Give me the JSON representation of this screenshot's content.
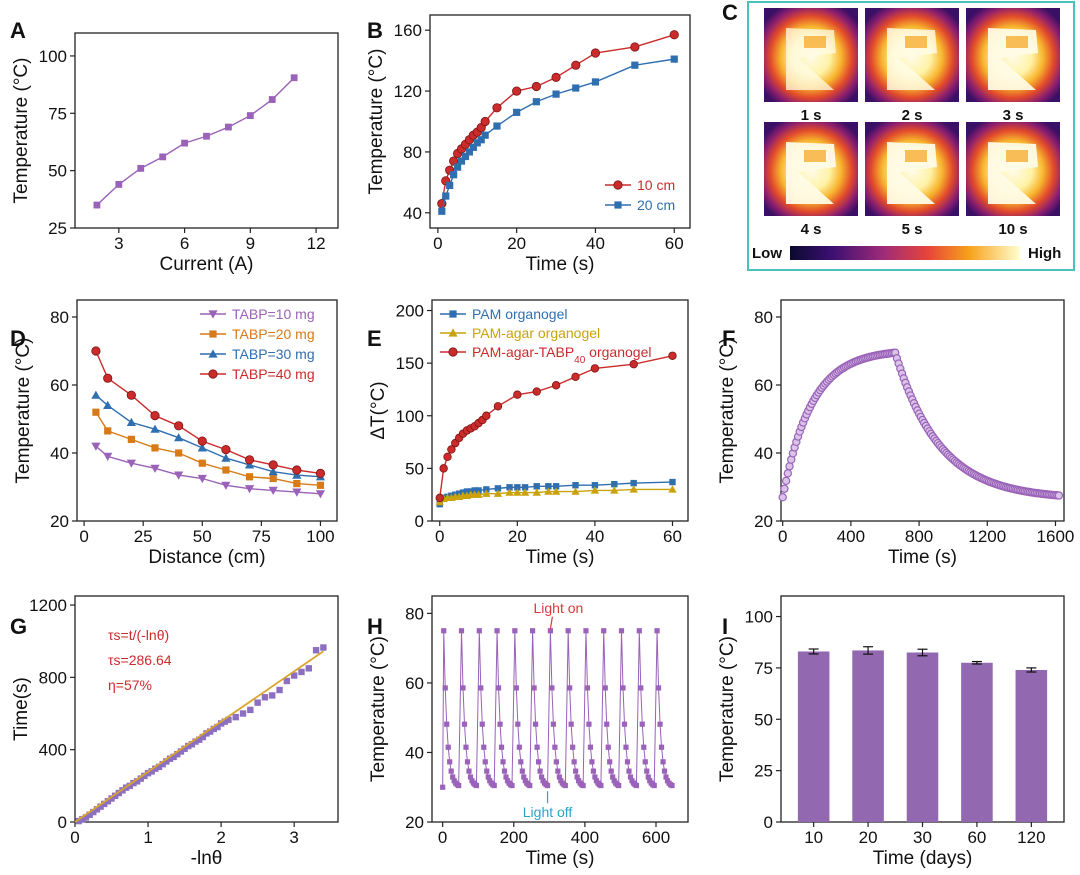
{
  "colors": {
    "purple": "#9a62b8",
    "red": "#cc2b2b",
    "blue": "#2f6fb0",
    "orange": "#d77a17",
    "gold": "#c9a20c",
    "fit": "#d9a52a",
    "bar": "#9268b0",
    "frame": "#4fc1bd",
    "lightOn": "#d63a3a",
    "lightOff": "#2aa4c9"
  },
  "panel_C": {
    "label": "C",
    "frames": [
      "1 s",
      "2 s",
      "3 s",
      "4 s",
      "5 s",
      "10 s"
    ],
    "colorbar": {
      "low": "Low",
      "high": "High"
    }
  },
  "chart_data": [
    {
      "panel": "A",
      "type": "line",
      "xlabel": "Current (A)",
      "ylabel": "Temperature (°C)",
      "xlim": [
        1,
        13
      ],
      "ylim": [
        25,
        110
      ],
      "xticks": [
        3,
        6,
        9,
        12
      ],
      "yticks": [
        25,
        50,
        75,
        100
      ],
      "series": [
        {
          "name": "",
          "color": "#9a62b8",
          "marker": "square",
          "x": [
            2,
            3,
            4,
            5,
            6,
            7,
            8,
            9,
            10,
            11
          ],
          "y": [
            35,
            44,
            51,
            56,
            62,
            65,
            69,
            74,
            81,
            90.5
          ]
        }
      ]
    },
    {
      "panel": "B",
      "type": "line",
      "xlabel": "Time (s)",
      "ylabel": "Temperature (°C)",
      "xlim": [
        -2,
        64
      ],
      "ylim": [
        30,
        170
      ],
      "xticks": [
        0,
        20,
        40,
        60
      ],
      "yticks": [
        40,
        80,
        120,
        160
      ],
      "legend_pos": "bottom-right",
      "series": [
        {
          "name": "10 cm",
          "color": "#cc2b2b",
          "marker": "circle",
          "x": [
            1,
            2,
            3,
            4,
            5,
            6,
            7,
            8,
            9,
            10,
            11,
            12,
            15,
            20,
            25,
            30,
            35,
            40,
            50,
            60
          ],
          "y": [
            46,
            61,
            68,
            74,
            79,
            82,
            85,
            88,
            91,
            93,
            96,
            100,
            109,
            120,
            123,
            129,
            137,
            145,
            149,
            157
          ]
        },
        {
          "name": "20 cm",
          "color": "#2f6fb0",
          "marker": "square",
          "x": [
            1,
            2,
            3,
            4,
            5,
            6,
            7,
            8,
            9,
            10,
            11,
            12,
            15,
            20,
            25,
            30,
            35,
            40,
            50,
            60
          ],
          "y": [
            41,
            51,
            58,
            65,
            70,
            74,
            77,
            80,
            83,
            86,
            88,
            91,
            97,
            106,
            113,
            118,
            122,
            126,
            137,
            141
          ]
        }
      ]
    },
    {
      "panel": "D",
      "type": "line",
      "xlabel": "Distance (cm)",
      "ylabel": "Temperature (°C)",
      "xlim": [
        -3,
        107
      ],
      "ylim": [
        20,
        85
      ],
      "xticks": [
        0,
        25,
        50,
        75,
        100
      ],
      "yticks": [
        20,
        40,
        60,
        80
      ],
      "legend_pos": "top-right",
      "series": [
        {
          "name": "TABP=10 mg",
          "color": "#9a62b8",
          "marker": "triangle-down",
          "x": [
            5,
            10,
            20,
            30,
            40,
            50,
            60,
            70,
            80,
            90,
            100
          ],
          "y": [
            42,
            39,
            37,
            35.5,
            33.5,
            32.5,
            30.5,
            29.5,
            29,
            28.5,
            28
          ]
        },
        {
          "name": "TABP=20 mg",
          "color": "#d77a17",
          "marker": "square",
          "x": [
            5,
            10,
            20,
            30,
            40,
            50,
            60,
            70,
            80,
            90,
            100
          ],
          "y": [
            52,
            46.5,
            44,
            41.5,
            40,
            37,
            35,
            33,
            32.5,
            31,
            30.5
          ]
        },
        {
          "name": "TABP=30 mg",
          "color": "#2f6fb0",
          "marker": "triangle",
          "x": [
            5,
            10,
            20,
            30,
            40,
            50,
            60,
            70,
            80,
            90,
            100
          ],
          "y": [
            57,
            54,
            49,
            47,
            44.5,
            41.5,
            38.5,
            36.5,
            34.5,
            33.5,
            33
          ]
        },
        {
          "name": "TABP=40 mg",
          "color": "#cc2b2b",
          "marker": "circle",
          "x": [
            5,
            10,
            20,
            30,
            40,
            50,
            60,
            70,
            80,
            90,
            100
          ],
          "y": [
            70,
            62,
            57,
            51,
            48,
            43.5,
            41,
            38,
            36.5,
            35,
            34
          ]
        }
      ]
    },
    {
      "panel": "E",
      "type": "line",
      "xlabel": "Time (s)",
      "ylabel": "ΔT(°C)",
      "xlim": [
        -2,
        64
      ],
      "ylim": [
        0,
        210
      ],
      "xticks": [
        0,
        20,
        40,
        60
      ],
      "yticks": [
        0,
        50,
        100,
        150,
        200
      ],
      "legend_pos": "top-right",
      "series": [
        {
          "name": "PAM organogel",
          "color": "#2f6fb0",
          "marker": "square",
          "x": [
            0,
            1,
            2,
            3,
            4,
            5,
            6,
            7,
            8,
            9,
            10,
            12,
            15,
            18,
            20,
            22,
            25,
            28,
            30,
            35,
            40,
            45,
            50,
            60
          ],
          "y": [
            16,
            22,
            23,
            24,
            25,
            26,
            27,
            28,
            28,
            29,
            29,
            30,
            31,
            32,
            32,
            32,
            33,
            33,
            33,
            34,
            34,
            35,
            36,
            37
          ]
        },
        {
          "name": "PAM-agar organogel",
          "color": "#c9a20c",
          "marker": "triangle",
          "x": [
            0,
            1,
            2,
            3,
            4,
            5,
            6,
            7,
            8,
            9,
            10,
            12,
            15,
            18,
            20,
            22,
            25,
            28,
            30,
            35,
            40,
            45,
            50,
            60
          ],
          "y": [
            18,
            21,
            22,
            22,
            23,
            23,
            24,
            24,
            25,
            25,
            25,
            26,
            26,
            27,
            27,
            27,
            27,
            28,
            28,
            28,
            29,
            29,
            30,
            30
          ]
        },
        {
          "name": "PAM-agar-TABP",
          "name_sub": "40",
          "name_suffix": " organogel",
          "color": "#cc2b2b",
          "marker": "circle",
          "x": [
            0,
            1,
            2,
            3,
            4,
            5,
            6,
            7,
            8,
            9,
            10,
            11,
            12,
            15,
            20,
            25,
            30,
            35,
            40,
            50,
            60
          ],
          "y": [
            22,
            50,
            61,
            68,
            74,
            79,
            83,
            86,
            88,
            90,
            93,
            96,
            100,
            109,
            120,
            123,
            129,
            137,
            145,
            149,
            157
          ]
        }
      ]
    },
    {
      "panel": "F",
      "type": "scatter",
      "xlabel": "Time (s)",
      "ylabel": "Temperature (°C)",
      "xlim": [
        -10,
        1650
      ],
      "ylim": [
        20,
        85
      ],
      "xticks": [
        0,
        400,
        800,
        1200,
        1600
      ],
      "yticks": [
        20,
        40,
        60,
        80
      ],
      "heating": {
        "t_start": 0,
        "t_end": 660,
        "T_start": 27,
        "T_end": 69.5
      },
      "cooling": {
        "t_start": 660,
        "t_end": 1620,
        "T_start": 69.5,
        "T_end": 27.5
      },
      "series": [
        {
          "name": "",
          "color": "#9a62b8",
          "marker": "circle-open",
          "sampling_s": 10
        }
      ]
    },
    {
      "panel": "G",
      "type": "scatter",
      "xlabel": "-lnθ",
      "ylabel": "Time(s)",
      "xlim": [
        0,
        3.6
      ],
      "ylim": [
        0,
        1250
      ],
      "xticks": [
        0,
        1,
        2,
        3
      ],
      "yticks": [
        0,
        400,
        800,
        1200
      ],
      "fit": {
        "slope": 286.64,
        "intercept": -30,
        "x_range": [
          0,
          3.4
        ]
      },
      "annotations": [
        "τs=t/(-lnθ)",
        "τs=286.64",
        "η=57%"
      ],
      "series": [
        {
          "name": "",
          "color": "#8d6fc2",
          "marker": "square",
          "x": [
            0.05,
            0.1,
            0.15,
            0.2,
            0.25,
            0.3,
            0.35,
            0.4,
            0.45,
            0.5,
            0.55,
            0.6,
            0.65,
            0.7,
            0.75,
            0.8,
            0.85,
            0.9,
            0.95,
            1.0,
            1.05,
            1.1,
            1.15,
            1.2,
            1.25,
            1.3,
            1.35,
            1.4,
            1.45,
            1.5,
            1.55,
            1.6,
            1.65,
            1.7,
            1.75,
            1.8,
            1.85,
            1.9,
            1.95,
            2.0,
            2.05,
            2.1,
            2.2,
            2.3,
            2.4,
            2.5,
            2.6,
            2.7,
            2.8,
            2.9,
            3.0,
            3.1,
            3.2,
            3.3,
            3.4
          ],
          "y": [
            5,
            15,
            25,
            40,
            55,
            70,
            85,
            100,
            115,
            130,
            145,
            160,
            175,
            190,
            200,
            215,
            225,
            240,
            255,
            270,
            280,
            295,
            305,
            320,
            335,
            350,
            360,
            375,
            390,
            405,
            420,
            430,
            445,
            455,
            470,
            490,
            500,
            515,
            525,
            545,
            555,
            565,
            580,
            600,
            620,
            660,
            690,
            700,
            730,
            780,
            810,
            830,
            850,
            950,
            965
          ]
        }
      ]
    },
    {
      "panel": "H",
      "type": "line",
      "xlabel": "Time (s)",
      "ylabel": "Temperature (°C)",
      "xlim": [
        -30,
        690
      ],
      "ylim": [
        20,
        85
      ],
      "xticks": [
        0,
        200,
        400,
        600
      ],
      "yticks": [
        20,
        40,
        60,
        80
      ],
      "cycles": 13,
      "period_s": 50,
      "first_peak_s": 3,
      "T_high": 75,
      "T_low": 30,
      "annotations": {
        "on": "Light on",
        "off": "Light off"
      },
      "series": [
        {
          "name": "",
          "color": "#9a62b8",
          "marker": "square"
        }
      ]
    },
    {
      "panel": "I",
      "type": "bar",
      "xlabel": "Time (days)",
      "ylabel": "Temperature (°C)",
      "ylim": [
        0,
        110
      ],
      "yticks": [
        0,
        25,
        50,
        75,
        100
      ],
      "categories": [
        "10",
        "20",
        "30",
        "60",
        "120"
      ],
      "values": [
        83,
        83.5,
        82.5,
        77.5,
        74
      ],
      "errors": [
        1.2,
        1.8,
        1.6,
        0.6,
        1.0
      ],
      "color": "#9268b0"
    }
  ]
}
